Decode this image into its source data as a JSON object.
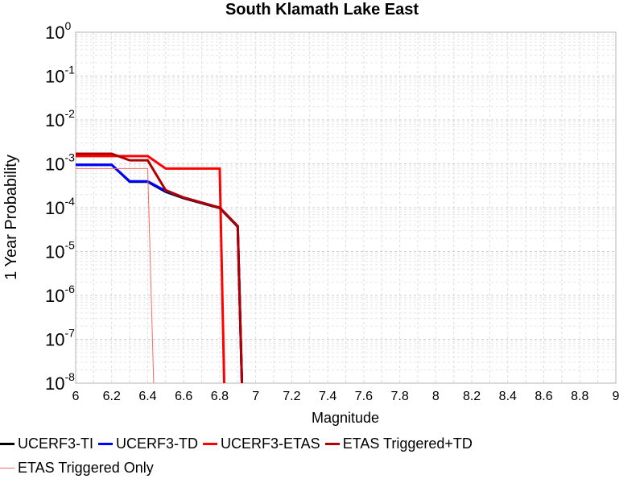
{
  "chart_data": {
    "type": "line",
    "title": "South Klamath Lake East",
    "xlabel": "Magnitude",
    "ylabel": "1 Year Probability",
    "xlim": [
      6,
      9
    ],
    "ylim": [
      1e-08,
      1
    ],
    "y_scale": "log",
    "grid": true,
    "x_ticks": [
      "6",
      "6.2",
      "6.4",
      "6.6",
      "6.8",
      "7",
      "7.2",
      "7.4",
      "7.6",
      "7.8",
      "8",
      "8.2",
      "8.4",
      "8.6",
      "8.8",
      "9"
    ],
    "y_ticks": [
      {
        "base": "10",
        "exp": "0"
      },
      {
        "base": "10",
        "exp": "-1"
      },
      {
        "base": "10",
        "exp": "-2"
      },
      {
        "base": "10",
        "exp": "-3"
      },
      {
        "base": "10",
        "exp": "-4"
      },
      {
        "base": "10",
        "exp": "-5"
      },
      {
        "base": "10",
        "exp": "-6"
      },
      {
        "base": "10",
        "exp": "-7"
      },
      {
        "base": "10",
        "exp": "-8"
      }
    ],
    "legend_position": "bottom",
    "series": [
      {
        "name": "UCERF3-TI",
        "color": "#000000",
        "width": 3,
        "points": [
          [
            6.0,
            0.00095
          ],
          [
            6.2,
            0.00095
          ],
          [
            6.3,
            0.00039
          ],
          [
            6.4,
            0.00039
          ],
          [
            6.5,
            0.00023
          ],
          [
            6.6,
            0.000165
          ],
          [
            6.8,
            9.8e-05
          ],
          [
            6.9,
            3.7e-05
          ],
          [
            6.93,
            1e-09
          ]
        ]
      },
      {
        "name": "UCERF3-TD",
        "color": "#0000ff",
        "width": 3,
        "points": [
          [
            6.0,
            0.00095
          ],
          [
            6.2,
            0.00095
          ],
          [
            6.3,
            0.0004
          ],
          [
            6.4,
            0.0004
          ],
          [
            6.5,
            0.00024
          ],
          [
            6.6,
            0.00017
          ],
          [
            6.8,
            0.0001
          ],
          [
            6.9,
            3.8e-05
          ],
          [
            6.93,
            1e-09
          ]
        ]
      },
      {
        "name": "UCERF3-ETAS",
        "color": "#ff0000",
        "width": 3,
        "points": [
          [
            6.0,
            0.0015
          ],
          [
            6.4,
            0.0015
          ],
          [
            6.5,
            0.00078
          ],
          [
            6.8,
            0.00078
          ],
          [
            6.83,
            1e-09
          ]
        ]
      },
      {
        "name": "ETAS Triggered+TD",
        "color": "#b00000",
        "width": 3,
        "points": [
          [
            6.0,
            0.0017
          ],
          [
            6.2,
            0.0017
          ],
          [
            6.3,
            0.0012
          ],
          [
            6.4,
            0.0012
          ],
          [
            6.5,
            0.00025
          ],
          [
            6.6,
            0.00017
          ],
          [
            6.8,
            0.0001
          ],
          [
            6.9,
            3.8e-05
          ],
          [
            6.93,
            1e-09
          ]
        ]
      },
      {
        "name": "ETAS Triggered Only",
        "color": "#ff6666",
        "width": 1,
        "points": [
          [
            6.0,
            0.00078
          ],
          [
            6.4,
            0.00078
          ],
          [
            6.44,
            1e-09
          ]
        ]
      }
    ]
  }
}
